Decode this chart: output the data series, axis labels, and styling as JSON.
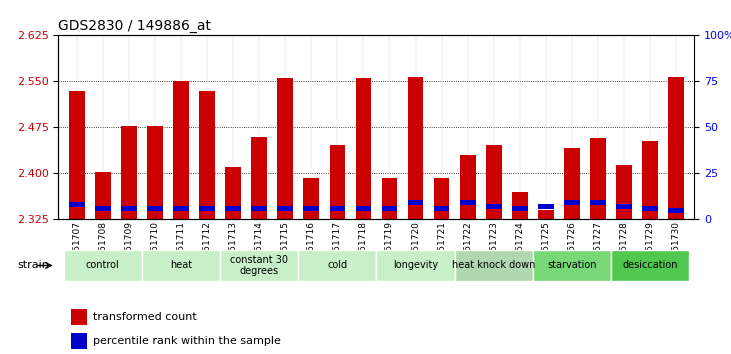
{
  "title": "GDS2830 / 149886_at",
  "samples": [
    "GSM151707",
    "GSM151708",
    "GSM151709",
    "GSM151710",
    "GSM151711",
    "GSM151712",
    "GSM151713",
    "GSM151714",
    "GSM151715",
    "GSM151716",
    "GSM151717",
    "GSM151718",
    "GSM151719",
    "GSM151720",
    "GSM151721",
    "GSM151722",
    "GSM151723",
    "GSM151724",
    "GSM151725",
    "GSM151726",
    "GSM151727",
    "GSM151728",
    "GSM151729",
    "GSM151730"
  ],
  "red_values": [
    2.535,
    2.403,
    2.477,
    2.477,
    2.55,
    2.535,
    2.41,
    2.46,
    2.556,
    2.392,
    2.447,
    2.556,
    2.392,
    2.557,
    2.393,
    2.43,
    2.447,
    2.37,
    2.34,
    2.442,
    2.458,
    2.413,
    2.453,
    2.558
  ],
  "blue_values": [
    8,
    6,
    6,
    6,
    6,
    6,
    6,
    6,
    6,
    6,
    6,
    6,
    6,
    9,
    6,
    9,
    7,
    6,
    7,
    9,
    9,
    7,
    6,
    5
  ],
  "groups": [
    {
      "label": "control",
      "start": 0,
      "end": 2,
      "color": "#c8f0c8"
    },
    {
      "label": "heat",
      "start": 3,
      "end": 5,
      "color": "#c8f0c8"
    },
    {
      "label": "constant 30\ndegrees",
      "start": 6,
      "end": 8,
      "color": "#c8f0c8"
    },
    {
      "label": "cold",
      "start": 9,
      "end": 11,
      "color": "#c8f0c8"
    },
    {
      "label": "longevity",
      "start": 12,
      "end": 14,
      "color": "#c8f0c8"
    },
    {
      "label": "heat knock down",
      "start": 15,
      "end": 17,
      "color": "#b0d8b0"
    },
    {
      "label": "starvation",
      "start": 18,
      "end": 20,
      "color": "#78d878"
    },
    {
      "label": "desiccation",
      "start": 21,
      "end": 23,
      "color": "#50c850"
    }
  ],
  "ylim_left": [
    2.325,
    2.625
  ],
  "ylim_right": [
    0,
    100
  ],
  "yticks_left": [
    2.325,
    2.4,
    2.475,
    2.55,
    2.625
  ],
  "yticks_right": [
    0,
    25,
    50,
    75,
    100
  ],
  "red_color": "#cc0000",
  "blue_color": "#0000cc",
  "bar_width": 0.6,
  "baseline": 2.325,
  "blue_scale": 0.003,
  "legend_items": [
    {
      "label": "transformed count",
      "color": "#cc0000"
    },
    {
      "label": "percentile rank within the sample",
      "color": "#0000cc"
    }
  ]
}
